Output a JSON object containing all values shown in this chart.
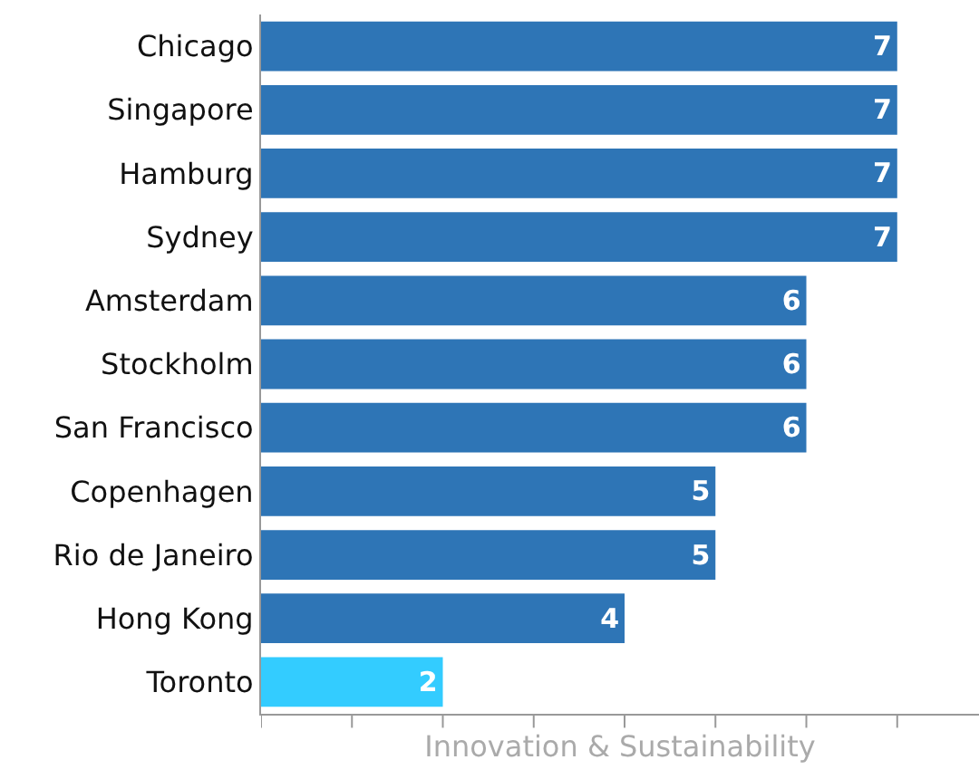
{
  "chart_data": {
    "type": "bar",
    "orientation": "horizontal",
    "xlabel": "Innovation & Sustainability",
    "categories": [
      "Chicago",
      "Singapore",
      "Hamburg",
      "Sydney",
      "Amsterdam",
      "Stockholm",
      "San Francisco",
      "Copenhagen",
      "Rio de Janeiro",
      "Hong Kong",
      "Toronto"
    ],
    "values": [
      7,
      7,
      7,
      7,
      6,
      6,
      6,
      5,
      5,
      4,
      2
    ],
    "colors": [
      "#2e75b6",
      "#2e75b6",
      "#2e75b6",
      "#2e75b6",
      "#2e75b6",
      "#2e75b6",
      "#2e75b6",
      "#2e75b6",
      "#2e75b6",
      "#2e75b6",
      "#33ccff"
    ],
    "xlim": [
      0,
      7.9
    ],
    "xticks": [
      {
        "value": 0,
        "label": null
      },
      {
        "value": 1,
        "label": null
      },
      {
        "value": 2,
        "label": null
      },
      {
        "value": 3,
        "label": null
      },
      {
        "value": 4,
        "label": null
      },
      {
        "value": 5,
        "label": null
      },
      {
        "value": 6,
        "label": null
      },
      {
        "value": 7,
        "label": null
      }
    ],
    "tick_labels": "y",
    "data_labels": true
  }
}
